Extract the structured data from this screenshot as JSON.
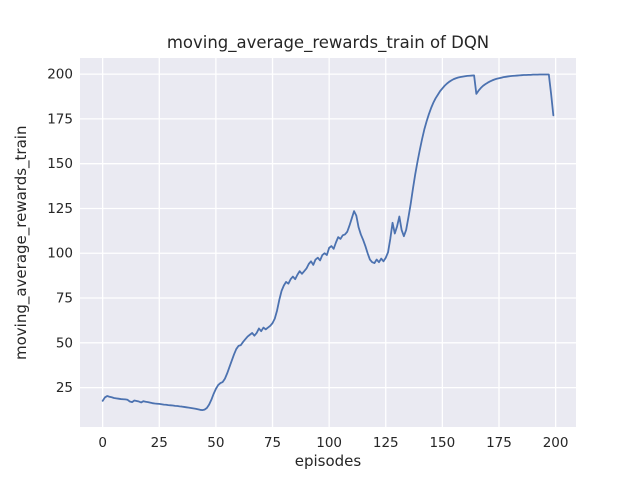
{
  "chart_data": {
    "type": "line",
    "title": "moving_average_rewards_train of DQN",
    "xlabel": "episodes",
    "ylabel": "moving_average_rewards_train",
    "grid": true,
    "legend_position": "none",
    "background_color": "#eaeaf2",
    "grid_color": "#ffffff",
    "text_color": "#262626",
    "line_color": "#4c72b0",
    "xticks": [
      0,
      25,
      50,
      75,
      100,
      125,
      150,
      175,
      200
    ],
    "yticks": [
      25,
      50,
      75,
      100,
      125,
      150,
      175,
      200
    ],
    "xlim": [
      -10,
      209
    ],
    "ylim": [
      3,
      209
    ],
    "series": [
      {
        "name": "moving_average_rewards_train",
        "x_start": 0,
        "x_step": 1,
        "values": [
          17.6,
          19.5,
          20.3,
          19.9,
          19.6,
          19.2,
          19.0,
          18.8,
          18.6,
          18.5,
          18.4,
          18.2,
          17.2,
          16.9,
          17.8,
          17.5,
          17.2,
          16.7,
          17.4,
          17.1,
          16.9,
          16.6,
          16.3,
          16.1,
          16.0,
          15.9,
          15.7,
          15.5,
          15.4,
          15.2,
          15.1,
          15.0,
          14.8,
          14.7,
          14.5,
          14.4,
          14.2,
          14.0,
          13.8,
          13.6,
          13.4,
          13.2,
          12.9,
          12.6,
          12.4,
          12.7,
          13.6,
          15.5,
          18.2,
          21.5,
          24.3,
          26.4,
          27.5,
          28.1,
          30.0,
          33.0,
          36.5,
          40.0,
          43.5,
          46.5,
          48.3,
          48.7,
          50.5,
          52.0,
          53.5,
          54.5,
          55.5,
          54.0,
          55.5,
          58.0,
          56.5,
          58.5,
          57.5,
          58.5,
          59.5,
          61.0,
          63.5,
          68.0,
          74.0,
          79.0,
          82.0,
          84.0,
          83.0,
          85.5,
          87.0,
          85.5,
          88.0,
          90.0,
          88.5,
          90.0,
          91.5,
          94.0,
          95.5,
          93.5,
          96.5,
          97.5,
          96.0,
          99.0,
          100.0,
          99.0,
          103.0,
          104.0,
          102.5,
          106.0,
          109.0,
          108.0,
          110.0,
          110.5,
          112.0,
          115.5,
          119.5,
          123.5,
          121.0,
          114.5,
          110.5,
          107.5,
          104.0,
          100.0,
          96.5,
          95.0,
          94.5,
          96.5,
          95.0,
          97.0,
          95.5,
          97.5,
          100.5,
          108.0,
          117.0,
          111.0,
          115.0,
          120.5,
          113.0,
          109.5,
          113.0,
          120.0,
          127.5,
          136.0,
          144.0,
          151.0,
          157.5,
          163.5,
          169.0,
          173.5,
          177.5,
          181.0,
          184.0,
          186.5,
          188.5,
          190.5,
          192.0,
          193.5,
          194.7,
          195.7,
          196.5,
          197.2,
          197.7,
          198.1,
          198.4,
          198.6,
          198.8,
          199.0,
          199.1,
          199.2,
          199.3,
          189.0,
          190.8,
          192.3,
          193.5,
          194.4,
          195.2,
          195.9,
          196.5,
          197.0,
          197.4,
          197.7,
          198.0,
          198.3,
          198.5,
          198.7,
          198.9,
          199.0,
          199.1,
          199.2,
          199.3,
          199.4,
          199.5,
          199.5,
          199.6,
          199.6,
          199.7,
          199.7,
          199.7,
          199.8,
          199.8,
          199.8,
          199.8,
          199.8,
          189.0,
          177.0
        ]
      }
    ]
  }
}
